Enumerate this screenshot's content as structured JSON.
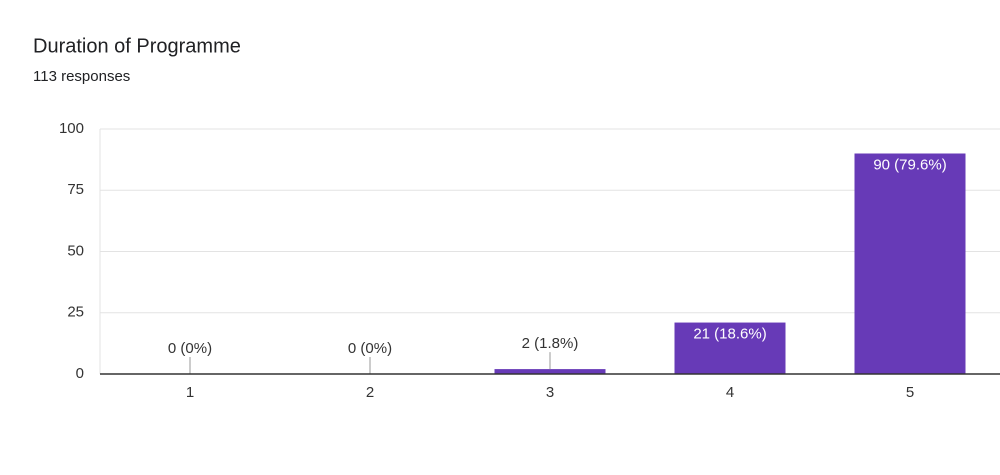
{
  "chart_data": {
    "type": "bar",
    "title": "Duration of Programme",
    "subtitle": "113 responses",
    "categories": [
      "1",
      "2",
      "3",
      "4",
      "5"
    ],
    "values": [
      0,
      0,
      2,
      21,
      90
    ],
    "value_labels": [
      "0 (0%)",
      "0 (0%)",
      "2 (1.8%)",
      "21 (18.6%)",
      "90 (79.6%)"
    ],
    "color": "#673ab7",
    "ylim": [
      0,
      100
    ],
    "yticks": [
      0,
      25,
      50,
      75,
      100
    ],
    "grid": true
  }
}
